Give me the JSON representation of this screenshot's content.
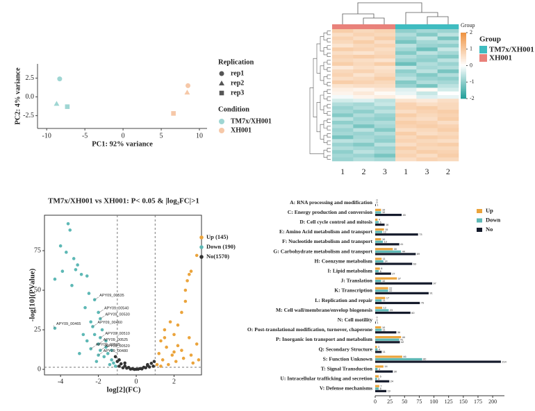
{
  "chart_data": [
    {
      "type": "scatter",
      "x_label": "PC1: 92% variance",
      "y_label": "PC2: 4% variance",
      "xlim": [
        -11.2,
        11
      ],
      "ylim": [
        -4.2,
        4.4
      ],
      "xticks": [
        -10,
        -5,
        0,
        5,
        10
      ],
      "yticks": [
        2.5,
        {
          "value": 0,
          "label": "0.0"
        },
        -2.5
      ],
      "legend_title": "Condition",
      "shape_legend": {
        "title": "Replication",
        "labels": [
          "rep1",
          "rep2",
          "rep3"
        ]
      },
      "series": [
        {
          "name": "TM7x/XH001",
          "color": "#9fd6d3",
          "x": [
            -8.3,
            -8.7,
            -7.3
          ],
          "values": [
            2.4,
            -0.9,
            -1.3
          ]
        },
        {
          "name": "XH001",
          "color": "#f6c8a8",
          "x": [
            8.5,
            8.4,
            6.6
          ],
          "values": [
            1.5,
            0.6,
            -2.2
          ]
        }
      ]
    },
    {
      "type": "heatmap",
      "group_title": "Group",
      "columns": [
        "1",
        "2",
        "3",
        "1",
        "3",
        "2"
      ],
      "column_groups": [
        "XH001",
        "XH001",
        "XH001",
        "TM7x/XH001",
        "TM7x/XH001",
        "TM7x/XH001"
      ],
      "groups": [
        {
          "name": "TM7x/XH001",
          "color": "#3fbcc0"
        },
        {
          "name": "XH001",
          "color": "#e9817a"
        }
      ],
      "clim": [
        -2,
        2
      ],
      "cticks": [
        2,
        1,
        0,
        -1,
        -2
      ],
      "low_color": "#1f9e98",
      "high_color": "#ef923f",
      "values": [
        [
          0.9,
          0.7,
          0.8,
          -1.0,
          -0.8,
          -0.9
        ],
        [
          0.6,
          0.8,
          0.7,
          -0.7,
          -1.1,
          -0.6
        ],
        [
          0.8,
          0.6,
          0.9,
          -0.9,
          -0.5,
          -1.2
        ],
        [
          0.7,
          0.9,
          0.6,
          -1.2,
          -0.8,
          -0.7
        ],
        [
          0.5,
          0.7,
          0.8,
          -0.6,
          -0.9,
          -1.0
        ],
        [
          0.9,
          0.8,
          0.6,
          -0.8,
          -1.3,
          -0.5
        ],
        [
          0.6,
          0.5,
          0.7,
          -1.1,
          -0.6,
          -0.8
        ],
        [
          0.8,
          0.9,
          0.8,
          -0.7,
          -0.9,
          -1.1
        ],
        [
          0.7,
          0.6,
          0.5,
          -0.9,
          -1.0,
          -0.6
        ],
        [
          0.9,
          0.7,
          0.9,
          -1.3,
          -0.7,
          -0.9
        ],
        [
          0.4,
          0.6,
          0.5,
          -0.5,
          -0.8,
          -0.7
        ],
        [
          0.7,
          0.8,
          0.6,
          -1.0,
          -0.6,
          -1.2
        ],
        [
          0.8,
          0.5,
          0.7,
          -0.8,
          -1.1,
          -0.7
        ],
        [
          0.6,
          0.7,
          0.9,
          -0.6,
          -0.9,
          -1.0
        ],
        [
          0.9,
          0.8,
          0.7,
          -1.1,
          -0.7,
          -0.8
        ],
        [
          0.5,
          0.6,
          0.6,
          -0.9,
          -1.2,
          -0.6
        ],
        [
          0.3,
          0.2,
          0.4,
          -0.3,
          0.1,
          -0.4
        ],
        [
          0.2,
          0.4,
          0.1,
          -0.2,
          -0.5,
          0.0
        ],
        [
          -0.1,
          0.2,
          0.3,
          0.1,
          -0.3,
          -0.2
        ],
        [
          -0.4,
          -0.3,
          -0.6,
          0.5,
          0.4,
          0.6
        ],
        [
          -0.7,
          -0.8,
          -0.5,
          0.8,
          0.6,
          0.7
        ],
        [
          -0.9,
          -0.7,
          -0.8,
          0.8,
          0.9,
          0.7
        ],
        [
          -0.8,
          -1.0,
          -0.6,
          0.6,
          0.8,
          0.9
        ],
        [
          -1.1,
          -0.7,
          -0.9,
          0.9,
          0.7,
          0.8
        ],
        [
          -0.6,
          -0.9,
          -1.0,
          0.7,
          0.6,
          0.9
        ],
        [
          -1.0,
          -0.8,
          -0.7,
          0.9,
          0.8,
          0.6
        ],
        [
          -0.7,
          -1.2,
          -0.8,
          0.8,
          0.9,
          0.8
        ],
        [
          -0.9,
          -0.6,
          -1.1,
          0.6,
          0.7,
          0.9
        ],
        [
          -0.8,
          -0.9,
          -0.7,
          0.9,
          0.6,
          0.7
        ],
        [
          -1.2,
          -0.8,
          -0.9,
          0.7,
          0.9,
          0.8
        ],
        [
          -0.6,
          -0.7,
          -1.0,
          0.8,
          0.7,
          0.6
        ],
        [
          -0.9,
          -1.1,
          -0.6,
          0.6,
          0.8,
          0.9
        ],
        [
          -0.7,
          -0.8,
          -0.9,
          0.9,
          0.7,
          0.7
        ],
        [
          -1.0,
          -0.6,
          -0.8,
          0.7,
          0.9,
          0.8
        ],
        [
          -0.8,
          -0.9,
          -1.2,
          0.8,
          0.6,
          0.9
        ],
        [
          -0.9,
          -0.7,
          -0.8,
          0.6,
          0.8,
          0.7
        ]
      ]
    },
    {
      "type": "volcano",
      "title": "TM7x/XH001 vs XH001: P< 0.05 & |log₂FC|>1",
      "x_label": "log[2](FC)",
      "y_label": "-log[10](PValue)",
      "xlim": [
        -4.85,
        3.45
      ],
      "ylim": [
        -3.5,
        97.4
      ],
      "xticks": [
        -4,
        -2,
        0,
        2
      ],
      "yticks": [
        0,
        25,
        50,
        75
      ],
      "vlines": [
        -1,
        1
      ],
      "hline": 1.3,
      "series": [
        {
          "name": "Up (145)",
          "color": "#eba43c",
          "x": [
            3.2,
            2.9,
            2.8,
            2.7,
            2.6,
            2.6,
            2.4,
            2.2,
            1.8,
            1.5,
            2.0,
            1.3,
            2.8,
            3.2,
            1.6,
            2.4,
            1.2,
            1.9,
            2.9,
            1.4,
            2.1,
            1.1,
            3.0,
            1.7,
            2.5,
            1.3,
            2.2,
            3.3,
            1.5,
            2.0
          ],
          "values": [
            72,
            62,
            60,
            56,
            50,
            43,
            36,
            28,
            30,
            25,
            22,
            18,
            20,
            16,
            14,
            12,
            10,
            9,
            9,
            6,
            5,
            3,
            4,
            3,
            7,
            2,
            15,
            6,
            20,
            11
          ]
        },
        {
          "name": "Down (190)",
          "color": "#5db8b5",
          "x": [
            -3.6,
            -3.5,
            -4.0,
            -3.7,
            -3.3,
            -3.1,
            -3.9,
            -4.3,
            -3.2,
            -2.9,
            -3.4,
            -2.6,
            -2.5,
            -2.7,
            -2.2,
            -2.0,
            -1.9,
            -4.3,
            -2.3,
            -1.9,
            -2.0,
            -2.4,
            -1.9,
            -2.0,
            -1.5,
            -1.3,
            -1.6,
            -2.6,
            -2.8,
            -1.2,
            -1.4,
            -1.7,
            -2.1,
            -3.0,
            -1.8,
            -2.4,
            -1.6,
            -1.3,
            -1.1,
            -2.2
          ],
          "values": [
            92,
            88,
            78,
            74,
            70,
            66,
            62,
            57,
            63,
            60,
            53,
            59,
            48,
            39,
            44,
            36,
            32,
            26,
            27,
            20,
            16,
            13,
            12,
            9,
            10,
            6,
            14,
            18,
            22,
            4,
            3,
            8,
            5,
            10,
            25,
            30,
            18,
            12,
            2,
            22
          ]
        },
        {
          "name": "No(1570)",
          "color": "#333333",
          "x": [
            -1,
            -0.8,
            -0.6,
            -0.4,
            -0.2,
            0,
            0.2,
            0.4,
            0.6,
            0.8,
            -0.9,
            -0.5,
            0.5,
            0.9,
            -0.7,
            0.3,
            -0.3,
            0.7,
            -1.1,
            -0.9,
            0.95,
            -0.1,
            0.1,
            -0.6,
            0.6
          ],
          "values": [
            5,
            3.5,
            2.2,
            1.2,
            0.4,
            0.1,
            0.5,
            1.3,
            2.4,
            3.8,
            2,
            0.8,
            1,
            2,
            1,
            0.3,
            0.2,
            1.5,
            8,
            6,
            5,
            0,
            0.1,
            4,
            3
          ]
        }
      ],
      "annotations": [
        {
          "text": "APY09_00535",
          "x": -2.2,
          "y": 44
        },
        {
          "text": "APY09_00540",
          "x": -1.95,
          "y": 36
        },
        {
          "text": "APY09_00530",
          "x": -1.9,
          "y": 32
        },
        {
          "text": "APY09_00465",
          "x": -4.3,
          "y": 26
        },
        {
          "text": "APY09_00460",
          "x": -2.3,
          "y": 27
        },
        {
          "text": "APY09_00510",
          "x": -1.9,
          "y": 20
        },
        {
          "text": "APY09_00525",
          "x": -2.0,
          "y": 16
        },
        {
          "text": "APY09_00505",
          "x": -2.4,
          "y": 13
        },
        {
          "text": "APY09_00520",
          "x": -1.9,
          "y": 12
        },
        {
          "text": "APY09_00480",
          "x": -2.0,
          "y": 9
        }
      ]
    },
    {
      "type": "bar",
      "orientation": "horizontal",
      "xlim": [
        0,
        220
      ],
      "xticks": [
        0,
        25,
        50,
        75,
        100,
        125,
        150,
        175,
        200
      ],
      "categories": [
        "A: RNA processing and modification",
        "C: Energy production and conversion",
        "D: Cell cycle control and mitosis",
        "E: Amino Acid metabolism and transport",
        "F: Nucleotide metabolism and transport",
        "G: Carbohydrate metabolism and transport",
        "H: Coenzyme metabolism",
        "I: Lipid metabolism",
        "J: Translation",
        "K: Transcription",
        "L: Replication and repair",
        "M: Cell wall/membrane/envelop biogenesis",
        "N: Cell motility",
        "O: Post-translational modification, turnover, chaperone",
        "P: Inorganic ion transport and metabolism",
        "Q: Secondary Structure",
        "S: Function Unknown",
        "T: Signal Transduction",
        "U: Intracellular trafficking and secretion",
        "V:  Defense mechanisms"
      ],
      "series": [
        {
          "name": "Up",
          "color": "#eba43c",
          "values": [
            0,
            10,
            4,
            15,
            10,
            30,
            11,
            8,
            37,
            22,
            17,
            12,
            0,
            10,
            44,
            3,
            46,
            14,
            6,
            7
          ]
        },
        {
          "name": "Down",
          "color": "#5db8b5",
          "values": [
            0,
            10,
            6,
            12,
            13,
            44,
            14,
            6,
            10,
            22,
            11,
            23,
            0,
            11,
            41,
            4,
            80,
            4,
            3,
            6
          ]
        },
        {
          "name": "No",
          "color": "#141a2b",
          "values": [
            1,
            45,
            16,
            73,
            41,
            69,
            63,
            27,
            97,
            91,
            76,
            60,
            1,
            36,
            42,
            11,
            214,
            30,
            24,
            19
          ]
        }
      ]
    }
  ]
}
